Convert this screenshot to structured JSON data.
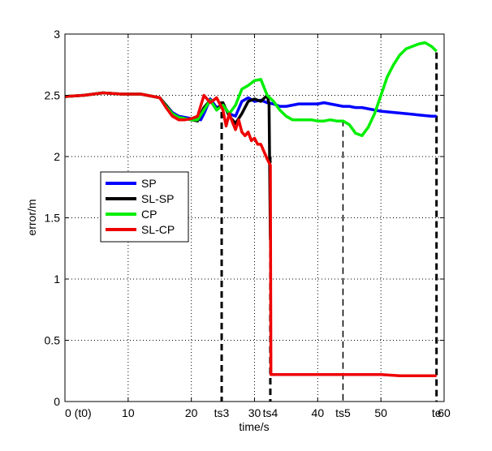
{
  "chart_data": {
    "type": "line",
    "xlabel": "time/s",
    "ylabel": "error/m",
    "xlim": [
      0,
      60
    ],
    "ylim": [
      0,
      3
    ],
    "grid": true,
    "legend_position": "left-middle",
    "x_ticks": [
      {
        "v": 0,
        "label": "0 (t0)"
      },
      {
        "v": 10,
        "label": "10"
      },
      {
        "v": 20,
        "label": "20"
      },
      {
        "v": 30,
        "label": "30"
      },
      {
        "v": 40,
        "label": "40"
      },
      {
        "v": 50,
        "label": "50"
      },
      {
        "v": 60,
        "label": "60"
      }
    ],
    "y_ticks": [
      {
        "v": 0,
        "label": "0"
      },
      {
        "v": 0.5,
        "label": "0.5"
      },
      {
        "v": 1,
        "label": "1"
      },
      {
        "v": 1.5,
        "label": "1.5"
      },
      {
        "v": 2,
        "label": "2"
      },
      {
        "v": 2.5,
        "label": "2.5"
      },
      {
        "v": 3,
        "label": "3"
      }
    ],
    "event_markers": [
      {
        "label": "ts3",
        "x": 24.8,
        "ytop": 2.45
      },
      {
        "label": "ts4",
        "x": 32.5,
        "ytop": 2.0
      },
      {
        "label": "ts5",
        "x": 44.0,
        "ytop": 2.3
      },
      {
        "label": "te",
        "x": 58.8,
        "ytop": 2.85
      }
    ],
    "series": [
      {
        "name": "SP",
        "color": "#0000ff",
        "x": [
          0,
          3,
          6,
          9,
          12,
          15,
          16,
          17,
          18,
          19,
          20,
          21,
          21.5,
          22,
          23,
          24,
          25,
          26,
          27,
          28,
          29,
          30,
          31,
          32,
          33,
          34,
          35,
          36,
          37,
          38,
          39,
          40,
          41,
          42,
          43,
          44,
          45,
          46,
          47,
          48,
          49,
          50,
          52,
          54,
          56,
          58,
          58.8
        ],
        "y": [
          2.49,
          2.5,
          2.52,
          2.51,
          2.51,
          2.48,
          2.42,
          2.36,
          2.33,
          2.32,
          2.31,
          2.31,
          2.3,
          2.35,
          2.47,
          2.4,
          2.42,
          2.35,
          2.33,
          2.45,
          2.48,
          2.45,
          2.46,
          2.44,
          2.43,
          2.41,
          2.41,
          2.42,
          2.43,
          2.43,
          2.43,
          2.43,
          2.44,
          2.43,
          2.42,
          2.41,
          2.41,
          2.4,
          2.4,
          2.39,
          2.38,
          2.37,
          2.36,
          2.35,
          2.34,
          2.33,
          2.33
        ]
      },
      {
        "name": "SL-SP",
        "color": "#000000",
        "x": [
          0,
          3,
          6,
          9,
          12,
          15,
          16,
          17,
          18,
          19,
          20,
          21,
          22,
          23,
          24,
          25,
          26,
          27,
          28,
          29,
          30,
          31,
          32,
          32.3,
          32.5
        ],
        "y": [
          2.49,
          2.5,
          2.52,
          2.51,
          2.51,
          2.48,
          2.42,
          2.35,
          2.32,
          2.31,
          2.3,
          2.29,
          2.4,
          2.46,
          2.38,
          2.44,
          2.33,
          2.27,
          2.35,
          2.45,
          2.47,
          2.45,
          2.5,
          2.43,
          1.32
        ]
      },
      {
        "name": "CP",
        "color": "#00ee00",
        "x": [
          0,
          3,
          6,
          9,
          12,
          15,
          16,
          17,
          18,
          19,
          20,
          21,
          22,
          23,
          24,
          25,
          26,
          27,
          28,
          29,
          30,
          31,
          32,
          33,
          34,
          35,
          36,
          37,
          38,
          39,
          40,
          41,
          42,
          43,
          44,
          45,
          46,
          47,
          48,
          49,
          50,
          51,
          52,
          53,
          54,
          55,
          56,
          57,
          58,
          58.8
        ],
        "y": [
          2.49,
          2.5,
          2.52,
          2.51,
          2.51,
          2.48,
          2.41,
          2.35,
          2.32,
          2.31,
          2.3,
          2.3,
          2.38,
          2.46,
          2.38,
          2.42,
          2.35,
          2.42,
          2.55,
          2.58,
          2.62,
          2.63,
          2.5,
          2.45,
          2.38,
          2.33,
          2.3,
          2.3,
          2.3,
          2.3,
          2.29,
          2.29,
          2.3,
          2.29,
          2.29,
          2.26,
          2.19,
          2.17,
          2.24,
          2.35,
          2.5,
          2.65,
          2.75,
          2.83,
          2.88,
          2.9,
          2.92,
          2.93,
          2.9,
          2.86
        ]
      },
      {
        "name": "SL-CP",
        "color": "#ee0000",
        "x": [
          0,
          3,
          6,
          9,
          12,
          15,
          16,
          17,
          18,
          19,
          20,
          21,
          22,
          23,
          24,
          25,
          25.5,
          26,
          26.5,
          27,
          27.5,
          28,
          28.5,
          29,
          29.5,
          30,
          30.5,
          31,
          31.5,
          32,
          32.3,
          32.5,
          32.6,
          33,
          35,
          38,
          41,
          44,
          47,
          50,
          53,
          56,
          58.8
        ],
        "y": [
          2.49,
          2.5,
          2.52,
          2.51,
          2.51,
          2.48,
          2.4,
          2.33,
          2.3,
          2.3,
          2.31,
          2.33,
          2.5,
          2.44,
          2.48,
          2.38,
          2.25,
          2.35,
          2.28,
          2.22,
          2.3,
          2.2,
          2.17,
          2.2,
          2.13,
          2.15,
          2.1,
          2.1,
          2.04,
          1.98,
          1.95,
          1.93,
          0.22,
          0.22,
          0.22,
          0.22,
          0.22,
          0.22,
          0.22,
          0.22,
          0.21,
          0.21,
          0.21
        ]
      }
    ]
  }
}
